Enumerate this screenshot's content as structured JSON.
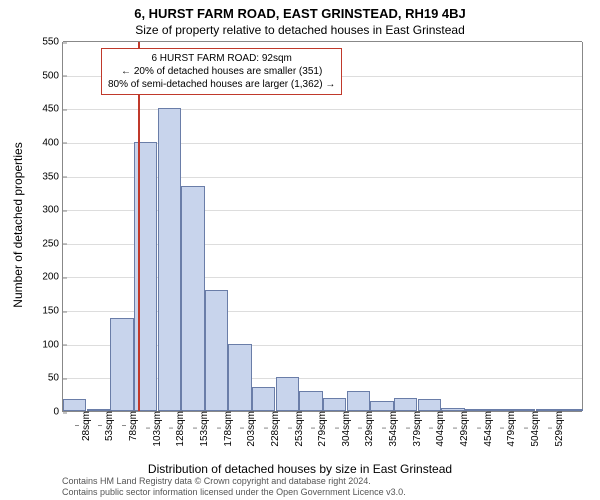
{
  "chart": {
    "type": "histogram",
    "title_main": "6, HURST FARM ROAD, EAST GRINSTEAD, RH19 4BJ",
    "title_sub": "Size of property relative to detached houses in East Grinstead",
    "ylabel": "Number of detached properties",
    "xlabel": "Distribution of detached houses by size in East Grinstead",
    "ylim": [
      0,
      550
    ],
    "ytick_step": 50,
    "yticks": [
      0,
      50,
      100,
      150,
      200,
      250,
      300,
      350,
      400,
      450,
      500,
      550
    ],
    "xticks": [
      "28sqm",
      "53sqm",
      "78sqm",
      "103sqm",
      "128sqm",
      "153sqm",
      "178sqm",
      "203sqm",
      "228sqm",
      "253sqm",
      "279sqm",
      "304sqm",
      "329sqm",
      "354sqm",
      "379sqm",
      "404sqm",
      "429sqm",
      "454sqm",
      "479sqm",
      "504sqm",
      "529sqm"
    ],
    "values": [
      18,
      0,
      138,
      400,
      450,
      335,
      180,
      100,
      35,
      50,
      30,
      20,
      30,
      15,
      20,
      18,
      5,
      3,
      2,
      2,
      3,
      2
    ],
    "marker_position_pct": 14.5,
    "bar_color": "#c8d4ec",
    "bar_border_color": "#6a7da8",
    "marker_color": "#c0392b",
    "grid_color": "#dddddd",
    "axis_color": "#888888",
    "background_color": "#ffffff",
    "title_fontsize": 13,
    "subtitle_fontsize": 12,
    "label_fontsize": 12,
    "tick_fontsize": 10,
    "bar_width_pct": 4.5
  },
  "annotation": {
    "line1": "6 HURST FARM ROAD: 92sqm",
    "line2": "← 20% of detached houses are smaller (351)",
    "line3": "80% of semi-detached houses are larger (1,362) →",
    "fontsize": 10
  },
  "footer": {
    "line1": "Contains HM Land Registry data © Crown copyright and database right 2024.",
    "line2": "Contains public sector information licensed under the Open Government Licence v3.0."
  }
}
